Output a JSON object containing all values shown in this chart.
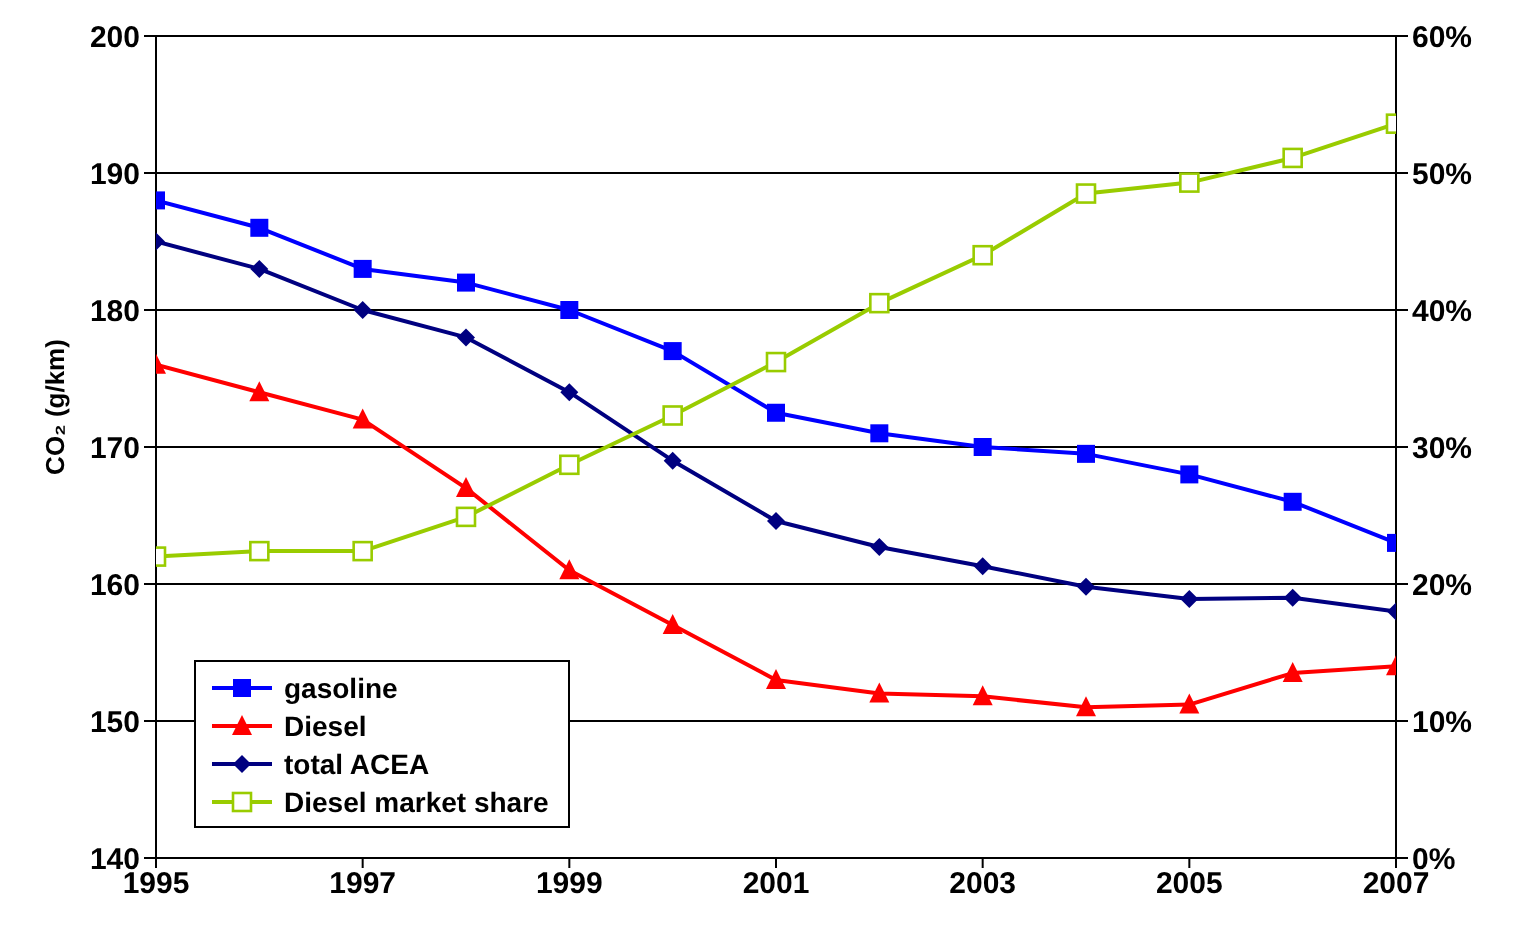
{
  "chart_data": {
    "type": "line",
    "ylabel": "CO₂ (g/km)",
    "x": [
      1995,
      1996,
      1997,
      1998,
      1999,
      2000,
      2001,
      2002,
      2003,
      2004,
      2005,
      2006,
      2007
    ],
    "xlim": [
      1995,
      2007
    ],
    "xticks": [
      1995,
      1997,
      1999,
      2001,
      2003,
      2005,
      2007
    ],
    "ylim": [
      140,
      200
    ],
    "yticks": [
      140,
      150,
      160,
      170,
      180,
      190,
      200
    ],
    "y2lim": [
      0,
      60
    ],
    "y2ticks": [
      {
        "value": 0,
        "label": "0%"
      },
      {
        "value": 10,
        "label": "10%"
      },
      {
        "value": 20,
        "label": "20%"
      },
      {
        "value": 30,
        "label": "30%"
      },
      {
        "value": 40,
        "label": "40%"
      },
      {
        "value": 50,
        "label": "50%"
      },
      {
        "value": 60,
        "label": "60%"
      }
    ],
    "grid": "y",
    "legend": "bottom left",
    "series": [
      {
        "name": "gasoline",
        "color": "#0000ff",
        "marker": "square",
        "values": [
          188,
          186,
          183,
          182,
          180,
          177,
          172.5,
          171,
          170,
          169.5,
          168,
          166,
          163
        ]
      },
      {
        "name": "Diesel",
        "color": "#ff0000",
        "marker": "triangle",
        "values": [
          176,
          174,
          172,
          167,
          161,
          157,
          153,
          152,
          151.8,
          151,
          151.2,
          153.5,
          154
        ]
      },
      {
        "name": "total ACEA",
        "color": "#000080",
        "marker": "diamond",
        "values": [
          185,
          183,
          180,
          178,
          174,
          169,
          164.6,
          162.7,
          161.3,
          159.8,
          158.9,
          159,
          158
        ]
      },
      {
        "name": "Diesel market share",
        "color": "#99cc00",
        "marker": "square-open",
        "axis": "y2",
        "values": [
          22,
          22.4,
          22.4,
          24.9,
          28.7,
          32.3,
          36.2,
          40.5,
          44,
          48.5,
          49.3,
          51.1,
          53.6
        ]
      }
    ]
  }
}
